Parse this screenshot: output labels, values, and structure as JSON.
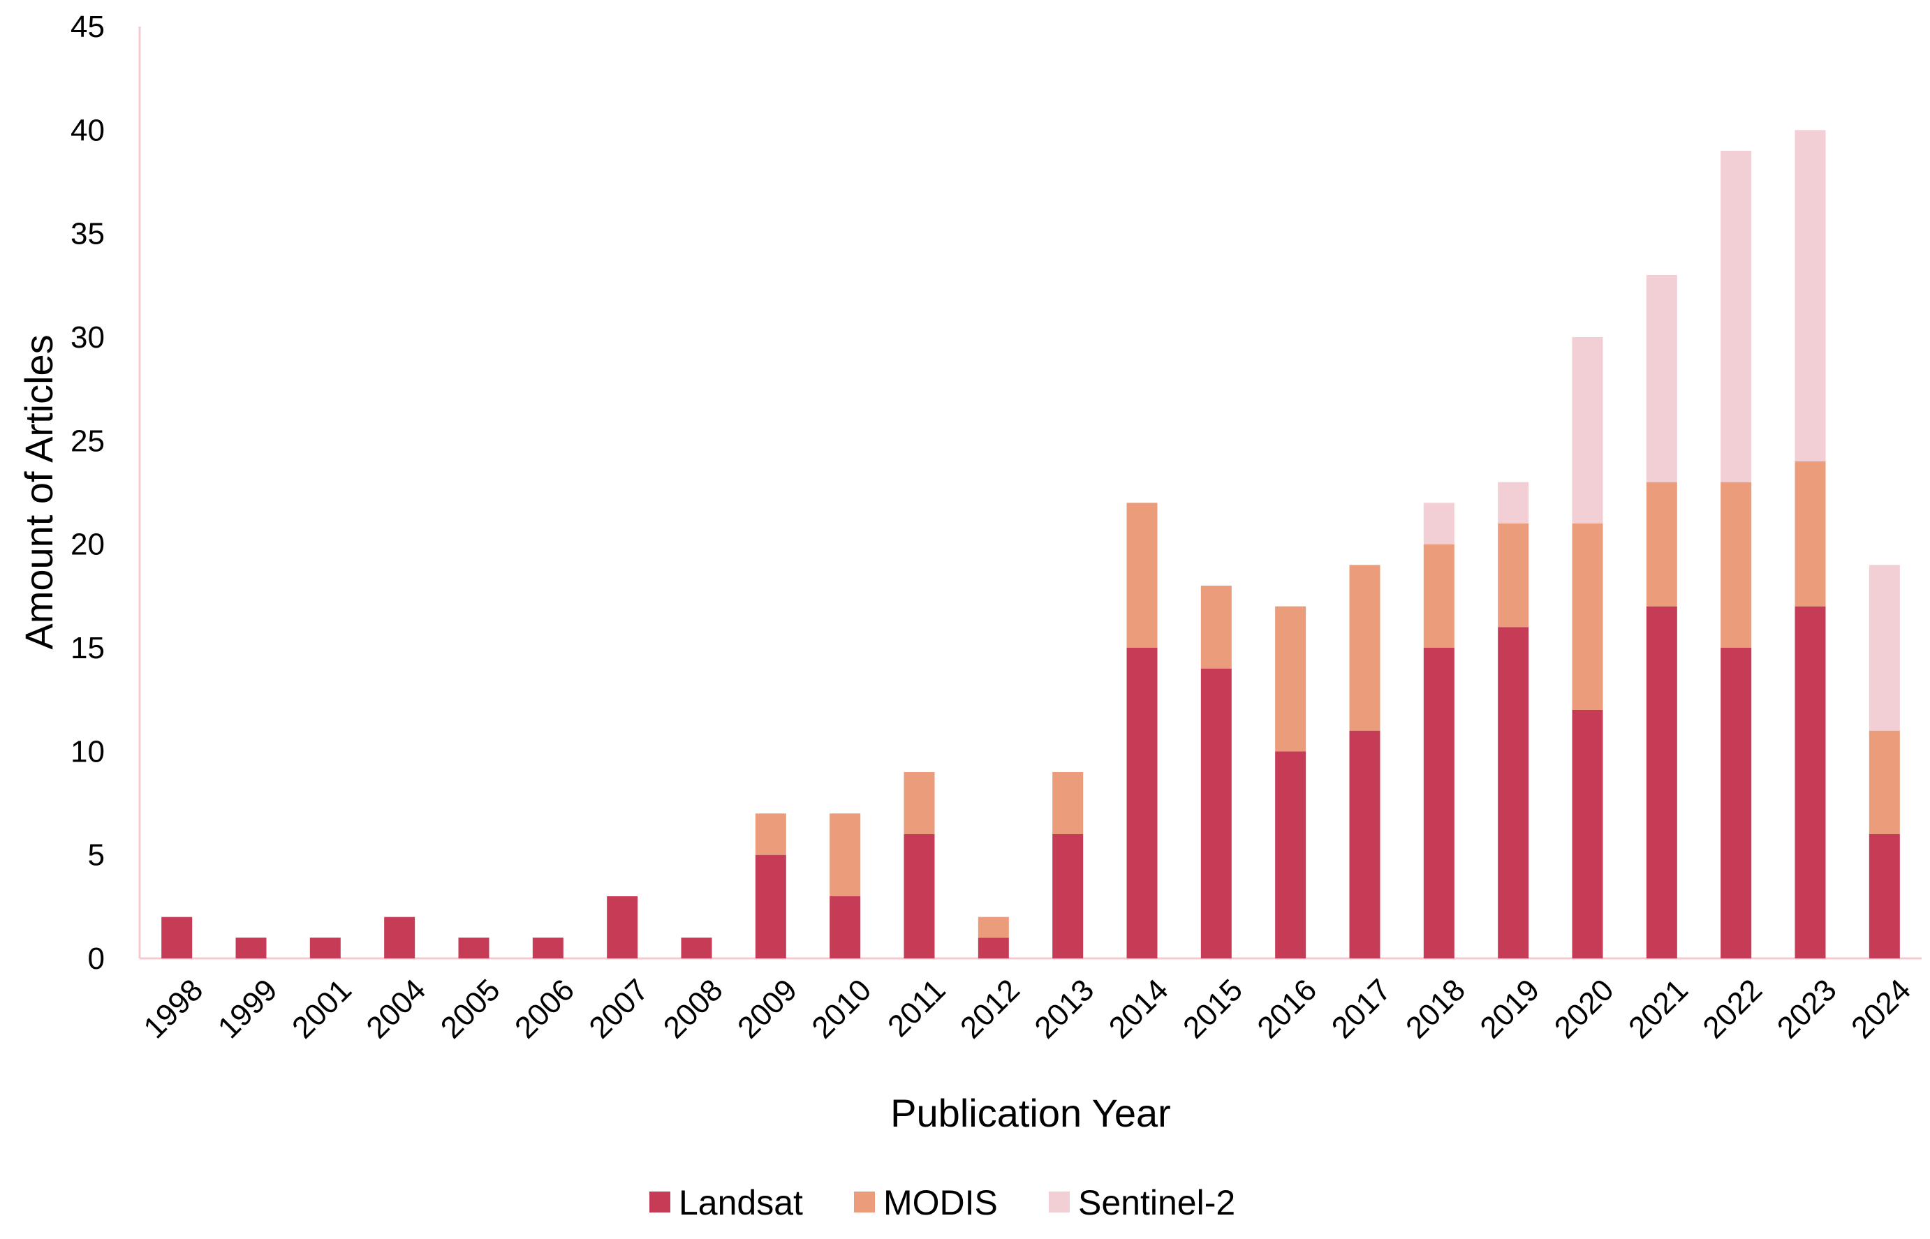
{
  "chart_data": {
    "type": "bar",
    "stacked": true,
    "title": "",
    "xlabel": "Publication Year",
    "ylabel": "Amount of Articles",
    "ylim": [
      0,
      45
    ],
    "yticks": [
      "0",
      "5",
      "10",
      "15",
      "20",
      "25",
      "30",
      "35",
      "40",
      "45"
    ],
    "grid": false,
    "legend_position": "bottom",
    "categories": [
      "1998",
      "1999",
      "2001",
      "2004",
      "2005",
      "2006",
      "2007",
      "2008",
      "2009",
      "2010",
      "2011",
      "2012",
      "2013",
      "2014",
      "2015",
      "2016",
      "2017",
      "2018",
      "2019",
      "2020",
      "2021",
      "2022",
      "2023",
      "2024"
    ],
    "series": [
      {
        "name": "Landsat",
        "color": "#c63c56",
        "values": [
          2,
          1,
          1,
          2,
          1,
          1,
          3,
          1,
          5,
          3,
          6,
          1,
          6,
          15,
          14,
          10,
          11,
          15,
          16,
          12,
          17,
          15,
          17,
          6
        ]
      },
      {
        "name": "MODIS",
        "color": "#eb9d7b",
        "values": [
          0,
          0,
          0,
          0,
          0,
          0,
          0,
          0,
          2,
          4,
          3,
          1,
          3,
          7,
          4,
          7,
          8,
          5,
          5,
          9,
          6,
          8,
          7,
          5
        ]
      },
      {
        "name": "Sentinel-2",
        "color": "#f2ced5",
        "values": [
          0,
          0,
          0,
          0,
          0,
          0,
          0,
          0,
          0,
          0,
          0,
          0,
          0,
          0,
          0,
          0,
          0,
          2,
          2,
          9,
          10,
          16,
          16,
          8
        ]
      }
    ]
  }
}
